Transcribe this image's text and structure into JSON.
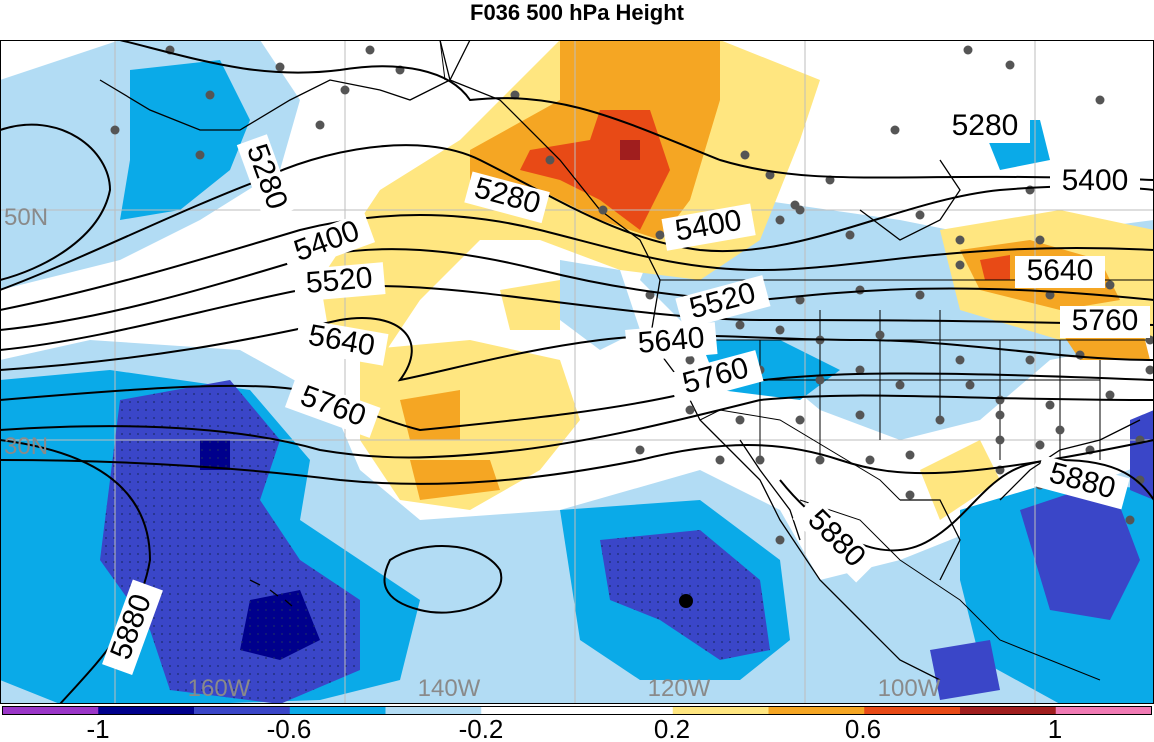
{
  "title": "F036 500 hPa Height",
  "colors": {
    "c_m1_2": "#9b36c8",
    "c_m1": "#00008c",
    "c_m08": "#3a46c8",
    "c_m06": "#0aaae8",
    "c_m04": "#b2dcf4",
    "c_0": "#ffffff",
    "c_02": "#ffe680",
    "c_04": "#f5a623",
    "c_06": "#e84a16",
    "c_08": "#a01e1e",
    "c_1": "#f07ab4",
    "contour": "#000000",
    "coast": "#000000",
    "station": "#555555"
  },
  "graticule": {
    "lat_labels": [
      "50N",
      "30N"
    ],
    "lon_labels": [
      "160W",
      "140W",
      "120W",
      "100W"
    ]
  },
  "contours": {
    "labels": [
      "5280",
      "5280",
      "5280",
      "5400",
      "5400",
      "5400",
      "5520",
      "5520",
      "5640",
      "5640",
      "5640",
      "5760",
      "5760",
      "5760",
      "5880",
      "5880",
      "5880"
    ]
  },
  "colorbar": {
    "tick_labels": [
      "-1",
      "-0.6",
      "-0.2",
      "0.2",
      "0.6",
      "1"
    ],
    "segments": [
      "#9b36c8",
      "#00008c",
      "#3a46c8",
      "#0aaae8",
      "#b2dcf4",
      "#ffffff",
      "#ffffff",
      "#ffe680",
      "#f5a623",
      "#e84a16",
      "#a01e1e",
      "#f07ab4"
    ]
  }
}
